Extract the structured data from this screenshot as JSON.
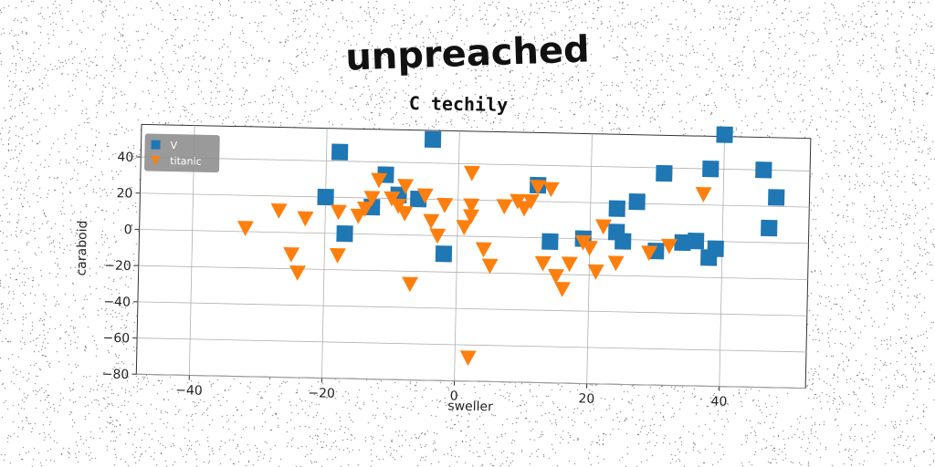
{
  "title": "unpreached",
  "subtitle": "C techily",
  "chart_data": {
    "type": "scatter",
    "xlabel": "sweller",
    "ylabel": "caraboid",
    "xlim": [
      -48,
      53
    ],
    "ylim": [
      -80,
      58
    ],
    "xticks": [
      -40,
      -20,
      0,
      20,
      40
    ],
    "yticks": [
      -80,
      -60,
      -40,
      -20,
      0,
      20,
      40
    ],
    "xtick_labels": [
      "−40",
      "−20",
      "0",
      "20",
      "40"
    ],
    "ytick_labels": [
      "−80",
      "−60",
      "−40",
      "−20",
      "0",
      "20",
      "40"
    ],
    "grid": true,
    "legend_position": "top-left",
    "series": [
      {
        "name": "V",
        "marker": "square",
        "color": "#1f77b4",
        "points": [
          [
            -18,
            45
          ],
          [
            -4,
            53
          ],
          [
            -11,
            33
          ],
          [
            -20,
            20
          ],
          [
            -13,
            15
          ],
          [
            -9,
            22
          ],
          [
            -6,
            20
          ],
          [
            -17,
            0
          ],
          [
            -2,
            -10
          ],
          [
            12,
            29
          ],
          [
            14,
            -2
          ],
          [
            19,
            0
          ],
          [
            24,
            17
          ],
          [
            27,
            21
          ],
          [
            24,
            4
          ],
          [
            25,
            -1
          ],
          [
            30,
            -6
          ],
          [
            31,
            37
          ],
          [
            34,
            -1
          ],
          [
            36,
            0
          ],
          [
            38,
            40
          ],
          [
            38,
            -9
          ],
          [
            39,
            -4
          ],
          [
            40,
            59
          ],
          [
            46,
            40
          ],
          [
            47,
            8
          ],
          [
            48,
            25
          ]
        ]
      },
      {
        "name": "titanic",
        "marker": "triangle-down",
        "color": "#ff7f0e",
        "points": [
          [
            -32,
            2
          ],
          [
            -27,
            12
          ],
          [
            -23,
            8
          ],
          [
            -25,
            -12
          ],
          [
            -24,
            -22
          ],
          [
            -18,
            12
          ],
          [
            -18,
            -12
          ],
          [
            -15,
            10
          ],
          [
            -14,
            14
          ],
          [
            -13,
            20
          ],
          [
            -12,
            30
          ],
          [
            -10,
            20
          ],
          [
            -9,
            16
          ],
          [
            -8,
            12
          ],
          [
            -8,
            27
          ],
          [
            -5,
            22
          ],
          [
            -7,
            -27
          ],
          [
            -4,
            8
          ],
          [
            -3,
            0
          ],
          [
            -2,
            17
          ],
          [
            1,
            5
          ],
          [
            2,
            35
          ],
          [
            2,
            17
          ],
          [
            2,
            11
          ],
          [
            4,
            -7
          ],
          [
            5,
            -16
          ],
          [
            7,
            17
          ],
          [
            9,
            20
          ],
          [
            10,
            16
          ],
          [
            11,
            20
          ],
          [
            12,
            28
          ],
          [
            13,
            -14
          ],
          [
            14,
            27
          ],
          [
            15,
            -21
          ],
          [
            16,
            -28
          ],
          [
            17,
            -14
          ],
          [
            19,
            -2
          ],
          [
            20,
            -5
          ],
          [
            21,
            -18
          ],
          [
            22,
            7
          ],
          [
            24,
            -13
          ],
          [
            29,
            -7
          ],
          [
            32,
            -3
          ],
          [
            37,
            26
          ],
          [
            2,
            -67
          ]
        ]
      }
    ]
  }
}
